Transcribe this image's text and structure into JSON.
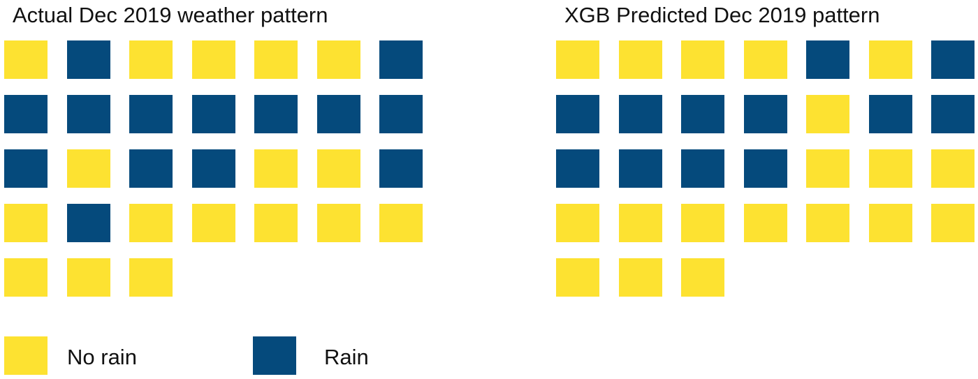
{
  "colors": {
    "no_rain": "#fde231",
    "rain": "#054a7c"
  },
  "chart_data": [
    {
      "type": "heatmap",
      "title": "Actual Dec 2019 weather pattern",
      "columns": 7,
      "legend": [
        {
          "label": "No rain",
          "value": 0
        },
        {
          "label": "Rain",
          "value": 1
        }
      ],
      "days": [
        0,
        1,
        0,
        0,
        0,
        0,
        1,
        1,
        1,
        1,
        1,
        1,
        1,
        1,
        1,
        0,
        1,
        1,
        0,
        0,
        1,
        0,
        1,
        0,
        0,
        0,
        0,
        0,
        0,
        0,
        0
      ]
    },
    {
      "type": "heatmap",
      "title": "XGB Predicted Dec 2019 pattern",
      "columns": 7,
      "days": [
        0,
        0,
        0,
        0,
        1,
        0,
        1,
        1,
        1,
        1,
        1,
        0,
        1,
        1,
        1,
        1,
        1,
        1,
        0,
        0,
        0,
        0,
        0,
        0,
        0,
        0,
        0,
        0,
        0,
        0,
        0
      ]
    }
  ],
  "legend": {
    "no_rain_label": "No rain",
    "rain_label": "Rain"
  }
}
